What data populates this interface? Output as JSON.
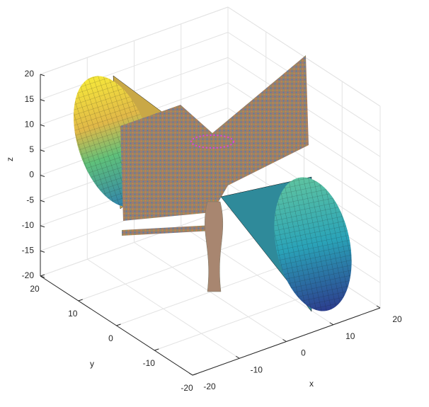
{
  "chart_data": {
    "type": "surface3d",
    "xlabel": "x",
    "ylabel": "y",
    "zlabel": "z",
    "xlim": [
      -20,
      20
    ],
    "ylim": [
      -20,
      20
    ],
    "zlim": [
      -20,
      20
    ],
    "xticks": [
      -20,
      -10,
      0,
      10,
      20
    ],
    "yticks": [
      -20,
      -10,
      0,
      10,
      20
    ],
    "zticks": [
      -20,
      -15,
      -10,
      -5,
      0,
      5,
      10,
      15,
      20
    ],
    "grid": true
  }
}
